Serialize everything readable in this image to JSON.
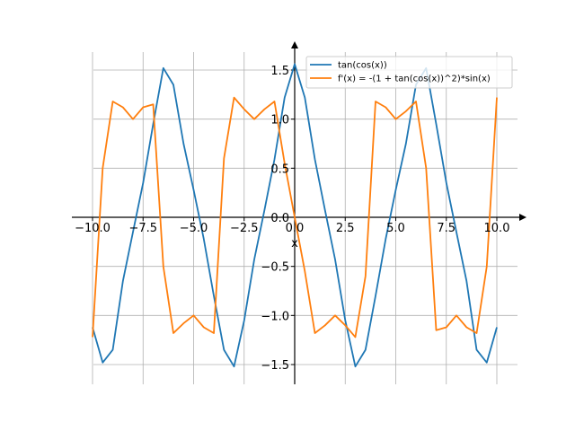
{
  "chart_data": {
    "type": "line",
    "title": "",
    "xlabel": "x",
    "ylabel": "",
    "xlim": [
      -10.0,
      10.0
    ],
    "ylim": [
      -1.6,
      1.6
    ],
    "xticks": [
      -10.0,
      -7.5,
      -5.0,
      -2.5,
      0.0,
      2.5,
      5.0,
      7.5,
      10.0
    ],
    "yticks": [
      -1.5,
      -1.0,
      -0.5,
      0.0,
      0.5,
      1.0,
      1.5
    ],
    "xtick_labels": [
      "−10.0",
      "−7.5",
      "−5.0",
      "−2.5",
      "0.0",
      "2.5",
      "5.0",
      "7.5",
      "10.0"
    ],
    "ytick_labels": [
      "−1.5",
      "−1.0",
      "−0.5",
      "0.0",
      "0.5",
      "1.0",
      "1.5"
    ],
    "grid": true,
    "legend_position": "top-right",
    "series": [
      {
        "name": "tan(cos(x))",
        "color": "#1f77b4",
        "x": [
          -10.0,
          -9.5,
          -9.0,
          -8.5,
          -8.0,
          -7.5,
          -7.0,
          -6.5,
          -6.0,
          -5.5,
          -5.0,
          -4.5,
          -4.0,
          -3.5,
          -3.0,
          -2.5,
          -2.0,
          -1.5,
          -1.0,
          -0.5,
          0.0,
          0.5,
          1.0,
          1.5,
          2.0,
          2.5,
          3.0,
          3.5,
          4.0,
          4.5,
          5.0,
          5.5,
          6.0,
          6.5,
          7.0,
          7.5,
          8.0,
          8.5,
          9.0,
          9.5,
          10.0
        ],
        "y": [
          -1.12,
          -1.48,
          -1.35,
          -0.65,
          -0.15,
          0.35,
          0.95,
          1.52,
          1.35,
          0.75,
          0.28,
          -0.22,
          -0.8,
          -1.35,
          -1.52,
          -1.05,
          -0.43,
          0.07,
          0.59,
          1.22,
          1.56,
          1.22,
          0.59,
          0.07,
          -0.43,
          -1.05,
          -1.52,
          -1.35,
          -0.8,
          -0.22,
          0.28,
          0.75,
          1.35,
          1.52,
          0.95,
          0.35,
          -0.15,
          -0.65,
          -1.35,
          -1.48,
          -1.12
        ]
      },
      {
        "name": "f'(x) = -(1 + tan(cos(x))^2)*sin(x)",
        "color": "#ff7f0e",
        "x": [
          -10.0,
          -9.5,
          -9.0,
          -8.5,
          -8.0,
          -7.5,
          -7.0,
          -6.5,
          -6.0,
          -5.5,
          -5.0,
          -4.5,
          -4.0,
          -3.5,
          -3.0,
          -2.5,
          -2.0,
          -1.5,
          -1.0,
          -0.5,
          0.0,
          0.5,
          1.0,
          1.5,
          2.0,
          2.5,
          3.0,
          3.5,
          4.0,
          4.5,
          5.0,
          5.5,
          6.0,
          6.5,
          7.0,
          7.5,
          8.0,
          8.5,
          9.0,
          9.5,
          10.0
        ],
        "y": [
          -1.22,
          0.5,
          1.18,
          1.12,
          1.0,
          1.12,
          1.15,
          -0.5,
          -1.18,
          -1.08,
          -1.0,
          -1.12,
          -1.18,
          0.6,
          1.22,
          1.1,
          1.0,
          1.1,
          1.18,
          0.55,
          0.0,
          -0.55,
          -1.18,
          -1.1,
          -1.0,
          -1.1,
          -1.22,
          -0.6,
          1.18,
          1.12,
          1.0,
          1.08,
          1.18,
          0.5,
          -1.15,
          -1.12,
          -1.0,
          -1.12,
          -1.18,
          -0.5,
          1.22
        ]
      }
    ]
  }
}
